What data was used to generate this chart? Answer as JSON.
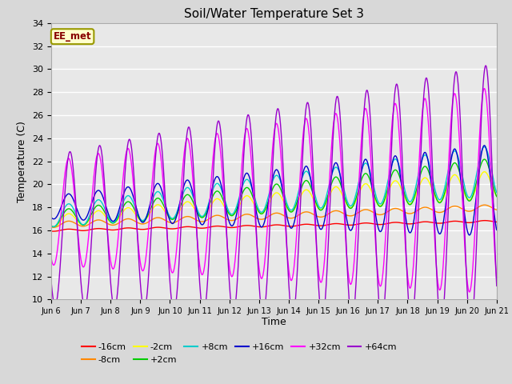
{
  "title": "Soil/Water Temperature Set 3",
  "xlabel": "Time",
  "ylabel": "Temperature (C)",
  "ylim": [
    10,
    34
  ],
  "xlim": [
    0,
    360
  ],
  "fig_facecolor": "#d8d8d8",
  "ax_facecolor": "#e8e8e8",
  "annotation_text": "EE_met",
  "annotation_facecolor": "#ffffcc",
  "annotation_edgecolor": "#999900",
  "annotation_textcolor": "#880000",
  "grid_color": "#ffffff",
  "series_colors": {
    "-16cm": "#ff0000",
    "-8cm": "#ff8800",
    "-2cm": "#ffff00",
    "+2cm": "#00cc00",
    "+8cm": "#00cccc",
    "+16cm": "#0000cc",
    "+32cm": "#ff00ff",
    "+64cm": "#9900cc"
  },
  "xtick_labels": [
    "Jun 6",
    "Jun 7",
    "Jun 8",
    "Jun 9",
    "Jun 10",
    "Jun 11",
    "Jun 12",
    "Jun 13",
    "Jun 14",
    "Jun 15",
    "Jun 16",
    "Jun 17",
    "Jun 18",
    "Jun 19",
    "Jun 20",
    "Jun 21"
  ],
  "xtick_positions": [
    0,
    24,
    48,
    72,
    96,
    120,
    144,
    168,
    192,
    216,
    240,
    264,
    288,
    312,
    336,
    360
  ],
  "ytick_values": [
    10,
    12,
    14,
    16,
    18,
    20,
    22,
    24,
    26,
    28,
    30,
    32,
    34
  ]
}
